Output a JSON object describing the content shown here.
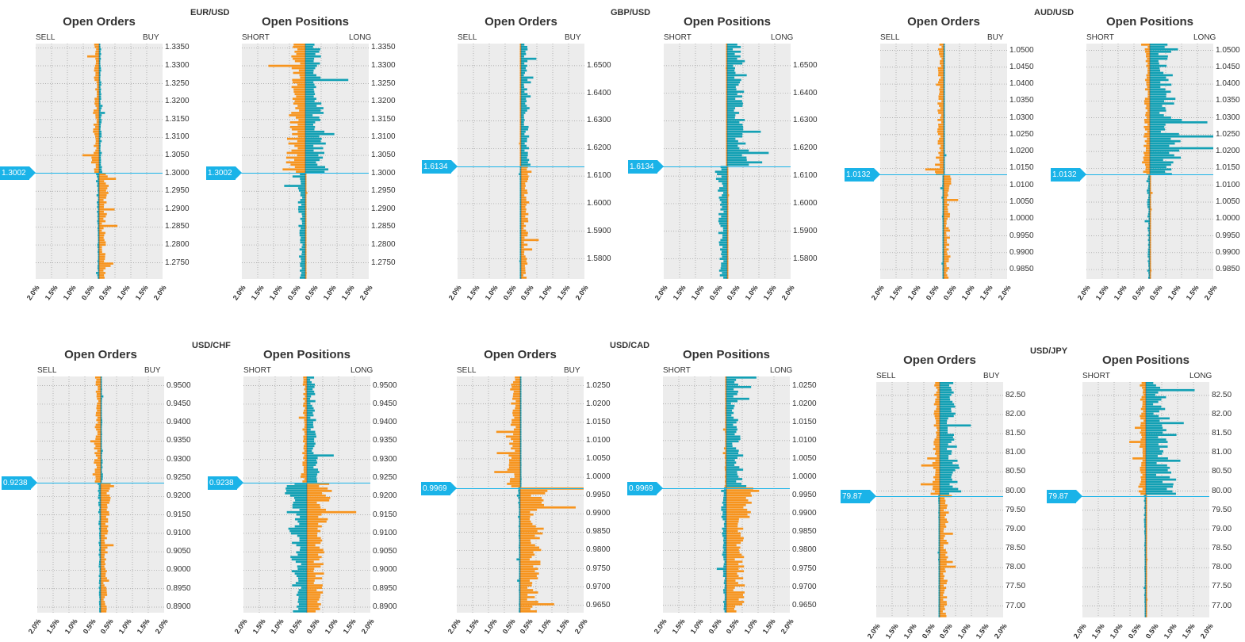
{
  "colors": {
    "orange": "#f7941d",
    "teal": "#12a0b4",
    "price": "#1ab3e8",
    "bg": "#ececec",
    "grid": "#9a9a9a"
  },
  "x_tick_labels": [
    "2.0%",
    "1.5%",
    "1.0%",
    "0.5%",
    "0.5%",
    "1.0%",
    "1.5%",
    "2.0%"
  ],
  "chart_data": [
    {
      "type": "bar",
      "pair": "EUR/USD",
      "title": "Open Orders",
      "left_label": "SELL",
      "right_label": "BUY",
      "current_price": "1.3002",
      "current_value": 1.3002,
      "ylim": [
        1.2705,
        1.3362
      ],
      "yticks": [
        "1.3350",
        "1.3300",
        "1.3250",
        "1.3200",
        "1.3150",
        "1.3100",
        "1.3050",
        "1.3000",
        "1.2950",
        "1.2900",
        "1.2850",
        "1.2800",
        "1.2750"
      ],
      "xlim": [
        -2,
        2
      ],
      "seed": 11,
      "above": [
        [
          0.28,
          0.12
        ],
        [
          0.28,
          0.12
        ]
      ],
      "below": [
        [
          0.1,
          0.35
        ],
        [
          0.1,
          0.35
        ]
      ]
    },
    {
      "type": "bar",
      "pair": "EUR/USD",
      "title": "Open Positions",
      "left_label": "SHORT",
      "right_label": "LONG",
      "current_price": "1.3002",
      "current_value": 1.3002,
      "ylim": [
        1.2705,
        1.3362
      ],
      "yticks": [
        "1.3350",
        "1.3300",
        "1.3250",
        "1.3200",
        "1.3150",
        "1.3100",
        "1.3050",
        "1.3000",
        "1.2950",
        "1.2900",
        "1.2850",
        "1.2800",
        "1.2750"
      ],
      "xlim": [
        -2,
        2
      ],
      "seed": 12,
      "above": [
        [
          0.1,
          0.15
        ],
        [
          1.4,
          1.6
        ]
      ],
      "below": [
        [
          0.6,
          0.05
        ],
        [
          0.05,
          0.02
        ]
      ]
    },
    {
      "type": "bar",
      "pair": "GBP/USD",
      "title": "Open Orders",
      "left_label": "SELL",
      "right_label": "BUY",
      "current_price": "1.6134",
      "current_value": 1.6134,
      "ylim": [
        1.5727,
        1.658
      ],
      "yticks": [
        "1.6500",
        "1.6400",
        "1.6300",
        "1.6200",
        "1.6100",
        "1.6000",
        "1.5900",
        "1.5800"
      ],
      "xlim": [
        -2,
        2
      ],
      "seed": 21,
      "above": [
        [
          0.03,
          0.35
        ],
        [
          0.03,
          0.35
        ]
      ],
      "below": [
        [
          0.05,
          0.35
        ],
        [
          0.05,
          0.35
        ]
      ]
    },
    {
      "type": "bar",
      "pair": "GBP/USD",
      "title": "Open Positions",
      "left_label": "SHORT",
      "right_label": "LONG",
      "current_price": "1.6134",
      "current_value": 1.6134,
      "ylim": [
        1.5727,
        1.658
      ],
      "yticks": [
        "1.6500",
        "1.6400",
        "1.6300",
        "1.6200",
        "1.6100",
        "1.6000",
        "1.5900",
        "1.5800"
      ],
      "xlim": [
        -2,
        2
      ],
      "seed": 22,
      "above": [
        [
          0.04,
          0.95
        ],
        [
          0.02,
          0.7
        ]
      ],
      "below": [
        [
          0.8,
          0.05
        ],
        [
          0.06,
          0.02
        ]
      ]
    },
    {
      "type": "bar",
      "pair": "AUD/USD",
      "title": "Open Orders",
      "left_label": "SELL",
      "right_label": "BUY",
      "current_price": "1.0132",
      "current_value": 1.0132,
      "ylim": [
        0.9822,
        1.052
      ],
      "yticks": [
        "1.0500",
        "1.0450",
        "1.0400",
        "1.0350",
        "1.0300",
        "1.0250",
        "1.0200",
        "1.0150",
        "1.0100",
        "1.0050",
        "1.0000",
        "0.9950",
        "0.9900",
        "0.9850"
      ],
      "xlim": [
        -2,
        2
      ],
      "seed": 31,
      "above": [
        [
          0.3,
          0.05
        ],
        [
          0.3,
          0.05
        ]
      ],
      "below": [
        [
          0.05,
          0.3
        ],
        [
          0.05,
          0.3
        ]
      ]
    },
    {
      "type": "bar",
      "pair": "AUD/USD",
      "title": "Open Positions",
      "left_label": "SHORT",
      "right_label": "LONG",
      "current_price": "1.0132",
      "current_value": 1.0132,
      "ylim": [
        0.9822,
        1.052
      ],
      "yticks": [
        "1.0500",
        "1.0450",
        "1.0400",
        "1.0350",
        "1.0300",
        "1.0250",
        "1.0200",
        "1.0150",
        "1.0100",
        "1.0050",
        "1.0000",
        "0.9950",
        "0.9900",
        "0.9850"
      ],
      "xlim": [
        -2,
        2
      ],
      "seed": 32,
      "above": [
        [
          0.05,
          1.2
        ],
        [
          0.5,
          1.3
        ]
      ],
      "below": [
        [
          0.2,
          0.05
        ],
        [
          0.04,
          0.03
        ]
      ]
    },
    {
      "type": "bar",
      "pair": "USD/CHF",
      "title": "Open Orders",
      "left_label": "SELL",
      "right_label": "BUY",
      "current_price": "0.9238",
      "current_value": 0.9238,
      "ylim": [
        0.8885,
        0.9525
      ],
      "yticks": [
        "0.9500",
        "0.9450",
        "0.9400",
        "0.9350",
        "0.9300",
        "0.9250",
        "0.9200",
        "0.9150",
        "0.9100",
        "0.9050",
        "0.9000",
        "0.8950",
        "0.8900"
      ],
      "xlim": [
        -2,
        2
      ],
      "seed": 41,
      "above": [
        [
          0.3,
          0.08
        ],
        [
          0.3,
          0.08
        ]
      ],
      "below": [
        [
          0.1,
          0.35
        ],
        [
          0.1,
          0.35
        ]
      ]
    },
    {
      "type": "bar",
      "pair": "USD/CHF",
      "title": "Open Positions",
      "left_label": "SHORT",
      "right_label": "LONG",
      "current_price": "0.9238",
      "current_value": 0.9238,
      "ylim": [
        0.8885,
        0.9525
      ],
      "yticks": [
        "0.9500",
        "0.9450",
        "0.9400",
        "0.9350",
        "0.9300",
        "0.9250",
        "0.9200",
        "0.9150",
        "0.9100",
        "0.9050",
        "0.9000",
        "0.8950",
        "0.8900"
      ],
      "xlim": [
        -2,
        2
      ],
      "seed": 42,
      "above": [
        [
          0.05,
          0.2
        ],
        [
          0.4,
          0.7
        ]
      ],
      "below": [
        [
          1.5,
          0.1
        ],
        [
          0.1,
          1.6
        ]
      ]
    },
    {
      "type": "bar",
      "pair": "USD/CAD",
      "title": "Open Orders",
      "left_label": "SELL",
      "right_label": "BUY",
      "current_price": "0.9969",
      "current_value": 0.9969,
      "ylim": [
        0.963,
        1.0275
      ],
      "yticks": [
        "1.0250",
        "1.0200",
        "1.0150",
        "1.0100",
        "1.0050",
        "1.0000",
        "0.9950",
        "0.9900",
        "0.9850",
        "0.9800",
        "0.9750",
        "0.9700",
        "0.9650"
      ],
      "xlim": [
        -2,
        2
      ],
      "seed": 51,
      "above": [
        [
          0.4,
          0.05
        ],
        [
          0.6,
          0.05
        ]
      ],
      "below": [
        [
          0.05,
          0.5
        ],
        [
          0.1,
          1.5
        ]
      ]
    },
    {
      "type": "bar",
      "pair": "USD/CAD",
      "title": "Open Positions",
      "left_label": "SHORT",
      "right_label": "LONG",
      "current_price": "0.9969",
      "current_value": 0.9969,
      "ylim": [
        0.963,
        1.0275
      ],
      "yticks": [
        "1.0250",
        "1.0200",
        "1.0150",
        "1.0100",
        "1.0050",
        "1.0000",
        "0.9950",
        "0.9900",
        "0.9850",
        "0.9800",
        "0.9750",
        "0.9700",
        "0.9650"
      ],
      "xlim": [
        -2,
        2
      ],
      "seed": 52,
      "above": [
        [
          0.05,
          0.3
        ],
        [
          0.1,
          1.0
        ]
      ],
      "below": [
        [
          0.3,
          1.1
        ],
        [
          0.1,
          0.8
        ]
      ]
    },
    {
      "type": "bar",
      "pair": "USD/JPY",
      "title": "Open Orders",
      "left_label": "SELL",
      "right_label": "BUY",
      "current_price": "79.87",
      "current_value": 79.87,
      "ylim": [
        76.7,
        82.85
      ],
      "yticks": [
        "82.50",
        "82.00",
        "81.50",
        "81.00",
        "80.50",
        "80.00",
        "79.50",
        "79.00",
        "78.50",
        "78.00",
        "77.50",
        "77.00"
      ],
      "xlim": [
        -2,
        2
      ],
      "seed": 61,
      "above": [
        [
          0.3,
          0.8
        ],
        [
          0.3,
          0.8
        ]
      ],
      "below": [
        [
          0.05,
          0.4
        ],
        [
          0.05,
          0.4
        ]
      ]
    },
    {
      "type": "bar",
      "pair": "USD/JPY",
      "title": "Open Positions",
      "left_label": "SHORT",
      "right_label": "LONG",
      "current_price": "79.87",
      "current_value": 79.87,
      "ylim": [
        76.7,
        82.85
      ],
      "yticks": [
        "82.50",
        "82.00",
        "81.50",
        "81.00",
        "80.50",
        "80.00",
        "79.50",
        "79.00",
        "78.50",
        "78.00",
        "77.50",
        "77.00"
      ],
      "xlim": [
        -2,
        2
      ],
      "seed": 62,
      "above": [
        [
          0.05,
          0.6
        ],
        [
          0.6,
          1.4
        ]
      ],
      "below": [
        [
          0.1,
          0.05
        ],
        [
          0.05,
          0.02
        ]
      ]
    }
  ]
}
